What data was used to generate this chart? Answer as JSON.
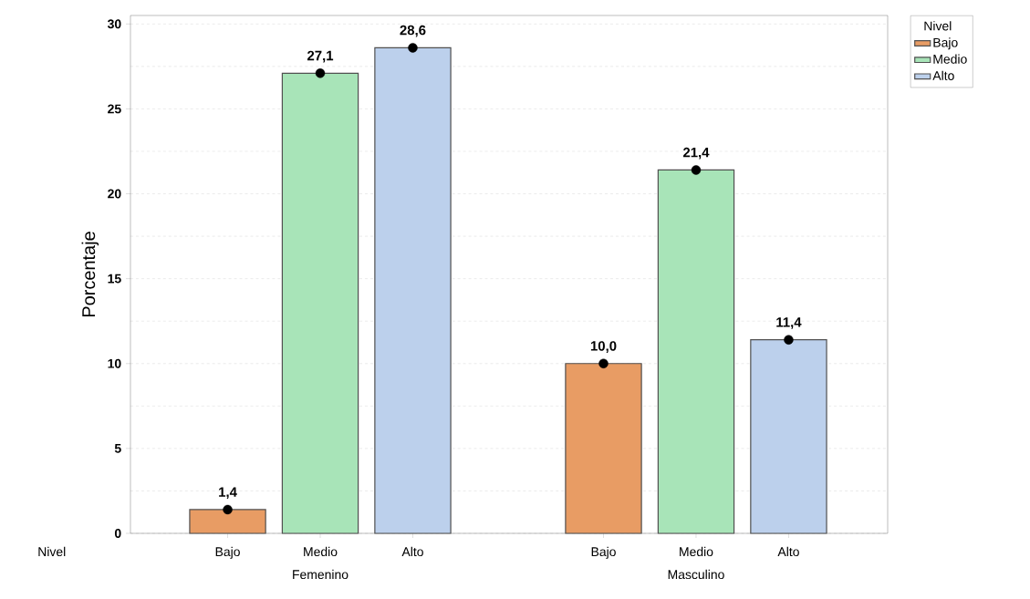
{
  "chart_data": {
    "type": "bar",
    "ylabel": "Porcentaje",
    "xlabel": "Nivel",
    "legend_title": "Nivel",
    "categories": [
      "Femenino",
      "Masculino"
    ],
    "series": [
      {
        "name": "Bajo",
        "color": "#e89c64",
        "values": [
          1.4,
          10.0
        ],
        "value_labels": [
          "1,4",
          "10,0"
        ]
      },
      {
        "name": "Medio",
        "color": "#a8e4b8",
        "values": [
          27.1,
          21.4
        ],
        "value_labels": [
          "27,1",
          "21,4"
        ]
      },
      {
        "name": "Alto",
        "color": "#bcd0ec",
        "values": [
          28.6,
          11.4
        ],
        "value_labels": [
          "28,6",
          "11,4"
        ]
      },
      {
        "type": "scatter",
        "color": "#000000",
        "x": [
          "Femenino",
          "Masculino"
        ],
        "values": [
          1.4,
          10.0
        ]
      },
      {
        "type": "scatter",
        "color": "#000000",
        "x": [
          "Femenino",
          "Masculino"
        ],
        "values": [
          27.1,
          21.4
        ]
      },
      {
        "type": "scatter",
        "color": "#000000",
        "x": [
          "Femenino",
          "Masculino"
        ],
        "values": [
          28.6,
          11.4
        ]
      }
    ],
    "ylim": [
      0,
      30.5
    ],
    "yticks": [
      0,
      5,
      10,
      15,
      20,
      25,
      30
    ],
    "grid": "y",
    "legend": "right",
    "marker": "circle"
  }
}
